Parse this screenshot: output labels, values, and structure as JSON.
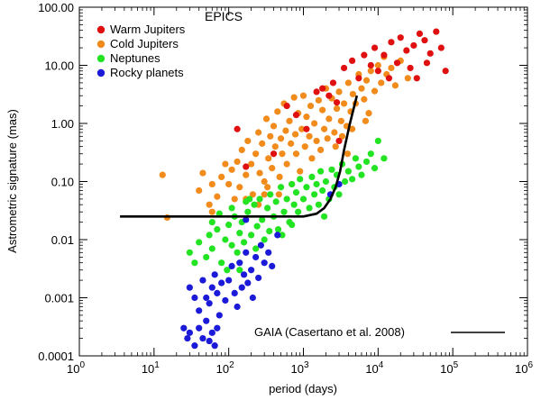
{
  "chart_data": {
    "type": "scatter",
    "title": "EPICS",
    "xlabel": "period (days)",
    "ylabel": "Astrometric signature (mas)",
    "x_scale": "log",
    "y_scale": "log",
    "xlim": [
      1,
      1000000
    ],
    "ylim": [
      0.0001,
      100
    ],
    "x_ticks": [
      1,
      10,
      100,
      1000,
      10000,
      100000,
      1000000
    ],
    "x_tick_labels": [
      {
        "base": "10",
        "exp": "0"
      },
      {
        "base": "10",
        "exp": "1"
      },
      {
        "base": "10",
        "exp": "2"
      },
      {
        "base": "10",
        "exp": "3"
      },
      {
        "base": "10",
        "exp": "4"
      },
      {
        "base": "10",
        "exp": "5"
      },
      {
        "base": "10",
        "exp": "6"
      }
    ],
    "y_ticks": [
      0.0001,
      0.001,
      0.01,
      0.1,
      1,
      10,
      100
    ],
    "y_tick_labels": [
      "0.0001",
      "0.001",
      "0.01",
      "0.10",
      "1.00",
      "10.00",
      "100.00"
    ],
    "legend_position": "top-left",
    "series": [
      {
        "name": "Warm Jupiters",
        "color": "#e01010",
        "points": [
          [
            1500,
            3.5
          ],
          [
            1800,
            4
          ],
          [
            2200,
            3
          ],
          [
            2500,
            5
          ],
          [
            3500,
            9
          ],
          [
            4500,
            12
          ],
          [
            5500,
            6
          ],
          [
            6500,
            15
          ],
          [
            8000,
            10
          ],
          [
            9000,
            20
          ],
          [
            10000,
            8
          ],
          [
            12000,
            15
          ],
          [
            15000,
            25
          ],
          [
            18000,
            11
          ],
          [
            20000,
            30
          ],
          [
            24000,
            18
          ],
          [
            27000,
            9
          ],
          [
            30000,
            22
          ],
          [
            36000,
            35
          ],
          [
            42000,
            27
          ],
          [
            50000,
            16
          ],
          [
            60000,
            38
          ],
          [
            70000,
            20
          ],
          [
            80000,
            8
          ],
          [
            45000,
            11
          ],
          [
            33000,
            6
          ],
          [
            14000,
            6
          ],
          [
            2800,
            2.3
          ],
          [
            1100,
            0.8
          ],
          [
            800,
            1.4
          ],
          [
            600,
            2
          ],
          [
            130,
            0.8
          ],
          [
            400,
            0.3
          ],
          [
            170,
            0.18
          ],
          [
            3000,
            0.5
          ]
        ]
      },
      {
        "name": "Cold Jupiters",
        "color": "#f08b1c",
        "points": [
          [
            13,
            0.13
          ],
          [
            15,
            0.024
          ],
          [
            40,
            0.07
          ],
          [
            55,
            0.04
          ],
          [
            60,
            0.03
          ],
          [
            70,
            0.055
          ],
          [
            80,
            0.12
          ],
          [
            100,
            0.09
          ],
          [
            110,
            0.16
          ],
          [
            120,
            0.05
          ],
          [
            130,
            0.22
          ],
          [
            140,
            0.08
          ],
          [
            150,
            0.35
          ],
          [
            170,
            0.13
          ],
          [
            180,
            0.5
          ],
          [
            200,
            0.2
          ],
          [
            210,
            0.06
          ],
          [
            230,
            0.3
          ],
          [
            250,
            0.7
          ],
          [
            260,
            0.14
          ],
          [
            280,
            0.45
          ],
          [
            300,
            0.1
          ],
          [
            320,
            1.2
          ],
          [
            340,
            0.25
          ],
          [
            360,
            0.6
          ],
          [
            380,
            0.17
          ],
          [
            400,
            0.9
          ],
          [
            420,
            0.4
          ],
          [
            450,
            1.6
          ],
          [
            480,
            0.12
          ],
          [
            500,
            0.55
          ],
          [
            520,
            0.3
          ],
          [
            550,
            2.2
          ],
          [
            580,
            0.75
          ],
          [
            600,
            0.2
          ],
          [
            650,
            1.1
          ],
          [
            680,
            0.45
          ],
          [
            700,
            0.09
          ],
          [
            750,
            2.8
          ],
          [
            780,
            0.65
          ],
          [
            800,
            0.3
          ],
          [
            850,
            1.5
          ],
          [
            900,
            0.15
          ],
          [
            950,
            0.8
          ],
          [
            1000,
            3
          ],
          [
            1050,
            0.4
          ],
          [
            1100,
            1.3
          ],
          [
            1200,
            0.6
          ],
          [
            1250,
            2
          ],
          [
            1300,
            0.25
          ],
          [
            1400,
            1
          ],
          [
            1500,
            0.5
          ],
          [
            1600,
            2.5
          ],
          [
            1700,
            0.35
          ],
          [
            1800,
            1.7
          ],
          [
            1900,
            0.8
          ],
          [
            2000,
            4
          ],
          [
            2100,
            0.55
          ],
          [
            2200,
            1.2
          ],
          [
            2400,
            2.7
          ],
          [
            2600,
            0.7
          ],
          [
            2800,
            1.8
          ],
          [
            3000,
            3.5
          ],
          [
            3200,
            1.1
          ],
          [
            3500,
            2.2
          ],
          [
            3800,
            0.9
          ],
          [
            4000,
            5
          ],
          [
            4300,
            1.6
          ],
          [
            4600,
            3.2
          ],
          [
            5000,
            2.2
          ],
          [
            5500,
            7
          ],
          [
            6000,
            4
          ],
          [
            6500,
            2.6
          ],
          [
            7000,
            5.5
          ],
          [
            8000,
            8
          ],
          [
            9000,
            3.6
          ],
          [
            10000,
            10
          ],
          [
            11000,
            5
          ],
          [
            12000,
            14
          ],
          [
            13000,
            7
          ],
          [
            15000,
            9
          ],
          [
            17000,
            4.5
          ],
          [
            20000,
            12
          ],
          [
            25000,
            6
          ],
          [
            7500,
            1.5
          ],
          [
            6800,
            1.1
          ],
          [
            300,
            0.06
          ],
          [
            90,
            0.2
          ],
          [
            60,
            0.09
          ],
          [
            45,
            0.14
          ],
          [
            170,
            0.05
          ],
          [
            250,
            0.04
          ],
          [
            330,
            0.08
          ],
          [
            470,
            0.06
          ],
          [
            2700,
            0.4
          ],
          [
            3300,
            0.6
          ],
          [
            3900,
            0.3
          ],
          [
            4500,
            0.8
          ]
        ]
      },
      {
        "name": "Neptunes",
        "color": "#22e422",
        "points": [
          [
            30,
            0.006
          ],
          [
            35,
            0.004
          ],
          [
            40,
            0.009
          ],
          [
            50,
            0.005
          ],
          [
            55,
            0.012
          ],
          [
            60,
            0.007
          ],
          [
            70,
            0.015
          ],
          [
            80,
            0.004
          ],
          [
            90,
            0.01
          ],
          [
            100,
            0.018
          ],
          [
            110,
            0.008
          ],
          [
            120,
            0.025
          ],
          [
            130,
            0.006
          ],
          [
            140,
            0.013
          ],
          [
            150,
            0.02
          ],
          [
            160,
            0.009
          ],
          [
            180,
            0.03
          ],
          [
            200,
            0.012
          ],
          [
            220,
            0.04
          ],
          [
            240,
            0.017
          ],
          [
            260,
            0.05
          ],
          [
            280,
            0.022
          ],
          [
            300,
            0.01
          ],
          [
            330,
            0.035
          ],
          [
            360,
            0.06
          ],
          [
            400,
            0.025
          ],
          [
            430,
            0.045
          ],
          [
            460,
            0.015
          ],
          [
            500,
            0.08
          ],
          [
            550,
            0.03
          ],
          [
            600,
            0.05
          ],
          [
            650,
            0.02
          ],
          [
            700,
            0.09
          ],
          [
            750,
            0.04
          ],
          [
            800,
            0.065
          ],
          [
            850,
            0.03
          ],
          [
            900,
            0.11
          ],
          [
            1000,
            0.05
          ],
          [
            1100,
            0.08
          ],
          [
            1200,
            0.035
          ],
          [
            1300,
            0.12
          ],
          [
            1400,
            0.06
          ],
          [
            1500,
            0.09
          ],
          [
            1600,
            0.04
          ],
          [
            1700,
            0.15
          ],
          [
            1800,
            0.07
          ],
          [
            2000,
            0.1
          ],
          [
            2200,
            0.05
          ],
          [
            2400,
            0.16
          ],
          [
            2600,
            0.08
          ],
          [
            2800,
            0.13
          ],
          [
            3000,
            0.06
          ],
          [
            3300,
            0.2
          ],
          [
            3600,
            0.1
          ],
          [
            4000,
            0.15
          ],
          [
            4500,
            0.11
          ],
          [
            5000,
            0.25
          ],
          [
            5500,
            0.18
          ],
          [
            6000,
            0.13
          ],
          [
            7000,
            0.22
          ],
          [
            8000,
            0.3
          ],
          [
            9000,
            0.17
          ],
          [
            10000,
            0.5
          ],
          [
            12000,
            0.25
          ],
          [
            60,
            0.02
          ],
          [
            75,
            0.028
          ],
          [
            110,
            0.035
          ],
          [
            170,
            0.045
          ],
          [
            230,
            0.007
          ],
          [
            350,
            0.014
          ],
          [
            520,
            0.012
          ],
          [
            140,
            0.003
          ],
          [
            95,
            0.003
          ],
          [
            190,
            0.05
          ],
          [
            700,
            0.018
          ],
          [
            1900,
            0.025
          ]
        ]
      },
      {
        "name": "Rocky planets",
        "color": "#1a1ad8",
        "points": [
          [
            25,
            0.0003
          ],
          [
            28,
            0.0002
          ],
          [
            30,
            0.00025
          ],
          [
            35,
            0.00015
          ],
          [
            40,
            0.0003
          ],
          [
            45,
            0.0002
          ],
          [
            50,
            0.0004
          ],
          [
            55,
            0.00018
          ],
          [
            60,
            0.00025
          ],
          [
            65,
            0.00015
          ],
          [
            70,
            0.0003
          ],
          [
            30,
            0.0015
          ],
          [
            35,
            0.001
          ],
          [
            40,
            0.0006
          ],
          [
            45,
            0.002
          ],
          [
            50,
            0.001
          ],
          [
            55,
            0.0008
          ],
          [
            60,
            0.0015
          ],
          [
            65,
            0.0025
          ],
          [
            70,
            0.0012
          ],
          [
            75,
            0.0005
          ],
          [
            80,
            0.0018
          ],
          [
            90,
            0.0009
          ],
          [
            100,
            0.002
          ],
          [
            110,
            0.0035
          ],
          [
            120,
            0.0012
          ],
          [
            130,
            0.0007
          ],
          [
            140,
            0.004
          ],
          [
            150,
            0.0015
          ],
          [
            160,
            0.0025
          ],
          [
            170,
            0.006
          ],
          [
            180,
            0.0018
          ],
          [
            200,
            0.003
          ],
          [
            210,
            0.001
          ],
          [
            230,
            0.005
          ],
          [
            250,
            0.0022
          ],
          [
            270,
            0.008
          ],
          [
            300,
            0.004
          ],
          [
            340,
            0.006
          ],
          [
            380,
            0.0035
          ],
          [
            450,
            0.012
          ],
          [
            3000,
            0.09
          ],
          [
            2300,
            0.06
          ],
          [
            170,
            0.022
          ]
        ]
      }
    ],
    "reference_curve": {
      "name": "GAIA (Casertano et al. 2008)",
      "color": "#000000",
      "points": [
        [
          3.5,
          0.025
        ],
        [
          1000,
          0.025
        ],
        [
          1500,
          0.028
        ],
        [
          1900,
          0.035
        ],
        [
          2300,
          0.05
        ],
        [
          2700,
          0.08
        ],
        [
          3100,
          0.15
        ],
        [
          3500,
          0.35
        ],
        [
          4200,
          1
        ],
        [
          5200,
          3
        ]
      ]
    }
  }
}
